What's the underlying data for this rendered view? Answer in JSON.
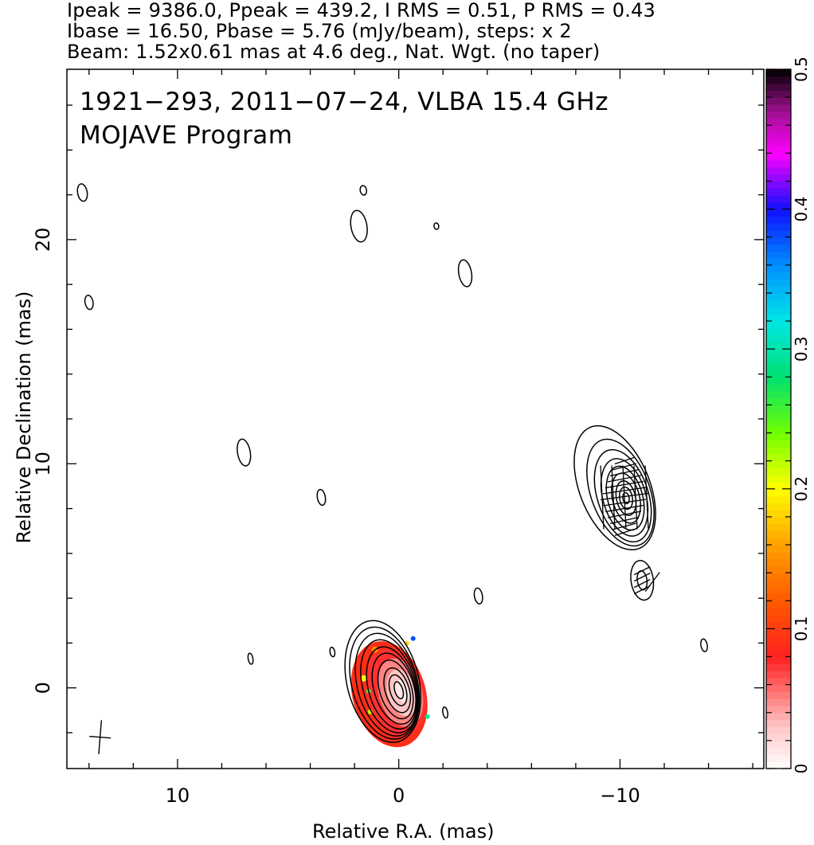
{
  "header": {
    "line1": "Ipeak = 9386.0, Ppeak = 439.2, I RMS = 0.51, P RMS = 0.43",
    "line2": "Ibase = 16.50, Pbase = 5.76 (mJy/beam), steps: x 2",
    "line3": "Beam: 1.52x0.61 mas at 4.6 deg., Nat. Wgt. (no taper)"
  },
  "map_title": {
    "line1": "1921−293, 2011−07−24, VLBA 15.4 GHz",
    "line2": "MOJAVE Program"
  },
  "chart_data": [
    {
      "type": "heatmap",
      "subtype": "radio contour map with fractional polarization overlay",
      "xlabel": "Relative R.A. (mas)",
      "ylabel": "Relative Declination (mas)",
      "xlim": [
        15,
        -16.5
      ],
      "ylim": [
        -3.6,
        27.6
      ],
      "x_ticks": [
        {
          "value": 10,
          "label": "10"
        },
        {
          "value": 0,
          "label": "0"
        },
        {
          "value": -10,
          "label": "−10"
        }
      ],
      "y_ticks": [
        {
          "value": 0,
          "label": "0"
        },
        {
          "value": 10,
          "label": "10"
        },
        {
          "value": 20,
          "label": "20"
        }
      ],
      "components": [
        {
          "kind": "core",
          "ra": 0,
          "dec": 0,
          "peak_mJy_per_beam": 9386.0,
          "contour_levels": 10
        },
        {
          "kind": "jet_knot",
          "ra": -10.2,
          "dec": 8.5,
          "contour_levels": 9
        },
        {
          "kind": "jet_knot",
          "ra": -11.0,
          "dec": 4.8,
          "contour_levels": 2
        }
      ],
      "isolated_contours": [
        {
          "ra": 14.3,
          "dec": 22.1
        },
        {
          "ra": 14.0,
          "dec": 17.2
        },
        {
          "ra": 1.6,
          "dec": 22.2
        },
        {
          "ra": 1.8,
          "dec": 20.6
        },
        {
          "ra": -1.7,
          "dec": 20.6
        },
        {
          "ra": -3.0,
          "dec": 18.5
        },
        {
          "ra": 7.0,
          "dec": 10.5
        },
        {
          "ra": 3.5,
          "dec": 8.5
        },
        {
          "ra": -3.6,
          "dec": 4.1
        },
        {
          "ra": 6.7,
          "dec": 1.3
        },
        {
          "ra": 3.0,
          "dec": 1.6
        },
        {
          "ra": -2.1,
          "dec": -1.1
        },
        {
          "ra": -13.8,
          "dec": 1.9
        }
      ],
      "beam": {
        "major_mas": 1.52,
        "minor_mas": 0.61,
        "pa_deg": 4.6,
        "ra": 13.5,
        "dec": -2.2
      }
    },
    {
      "type": "colorbar",
      "vlim": [
        0,
        0.5
      ],
      "ticks": [
        {
          "value": 0,
          "label": "0"
        },
        {
          "value": 0.1,
          "label": "0.1"
        },
        {
          "value": 0.2,
          "label": "0.2"
        },
        {
          "value": 0.3,
          "label": "0.3"
        },
        {
          "value": 0.4,
          "label": "0.4"
        },
        {
          "value": 0.5,
          "label": "0.5"
        }
      ],
      "colormap_stops": [
        {
          "v": 0.0,
          "color": "#ffffff"
        },
        {
          "v": 0.03,
          "color": "#ffc6c6"
        },
        {
          "v": 0.08,
          "color": "#ff2020"
        },
        {
          "v": 0.12,
          "color": "#ff5a00"
        },
        {
          "v": 0.16,
          "color": "#ffa000"
        },
        {
          "v": 0.2,
          "color": "#ffff00"
        },
        {
          "v": 0.24,
          "color": "#70ff00"
        },
        {
          "v": 0.28,
          "color": "#00e070"
        },
        {
          "v": 0.32,
          "color": "#00e6e6"
        },
        {
          "v": 0.36,
          "color": "#0090ff"
        },
        {
          "v": 0.4,
          "color": "#1010ff"
        },
        {
          "v": 0.44,
          "color": "#ff00ff"
        },
        {
          "v": 0.47,
          "color": "#a01090"
        },
        {
          "v": 0.5,
          "color": "#000000"
        }
      ]
    }
  ]
}
